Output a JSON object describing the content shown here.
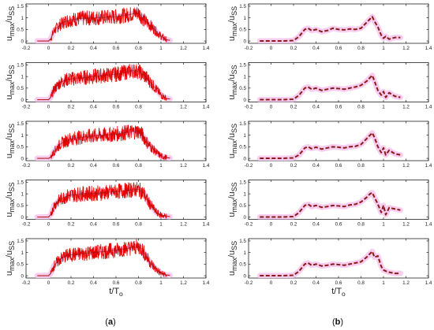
{
  "figure": {
    "caption_left": "(a)",
    "caption_right": "(b)",
    "caption_left_open": "(",
    "caption_left_letter": "a",
    "caption_left_close": ")",
    "caption_right_open": "(",
    "caption_right_letter": "b",
    "caption_right_close": ")",
    "colors": {
      "signal": "#e60000",
      "mean": "#8b1a1a",
      "halo": "#f7c8ee",
      "axes": "#000000"
    }
  },
  "chart_data": [
    {
      "id": "a1",
      "column": "a",
      "type": "line",
      "ylabel_main": "u",
      "ylabel_sub1": "max",
      "ylabel_mid": "/u",
      "ylabel_sub2": "SS",
      "xlabel_main": "",
      "xlabel_sub": "",
      "xlim": [
        -0.2,
        1.4
      ],
      "ylim": [
        -0.1,
        1.6
      ],
      "xticks": [
        "-0.2",
        "0",
        "0.2",
        "0.4",
        "0.6",
        "0.8",
        "1",
        "1.2",
        "1.4"
      ],
      "yticks": [
        "0",
        "0.5",
        "1",
        "1.5"
      ],
      "series": [
        {
          "style": "noisy",
          "x": [
            -0.1,
            0,
            0.02,
            0.05,
            0.1,
            0.15,
            0.2,
            0.3,
            0.4,
            0.5,
            0.6,
            0.7,
            0.8,
            0.82,
            0.85,
            0.9,
            0.95,
            1.0,
            1.05,
            1.08
          ],
          "y": [
            0,
            0,
            0.1,
            0.45,
            0.7,
            0.85,
            0.92,
            0.98,
            1.0,
            1.02,
            1.05,
            1.12,
            1.22,
            1.1,
            0.9,
            0.7,
            0.45,
            0.2,
            0.05,
            0.03
          ]
        }
      ]
    },
    {
      "id": "a2",
      "column": "a",
      "type": "line",
      "ylabel_main": "u",
      "ylabel_sub1": "max",
      "ylabel_mid": "/u",
      "ylabel_sub2": "SS",
      "xlabel_main": "",
      "xlabel_sub": "",
      "xlim": [
        -0.2,
        1.4
      ],
      "ylim": [
        -0.1,
        1.6
      ],
      "xticks": [
        "-0.2",
        "0",
        "0.2",
        "0.4",
        "0.6",
        "0.8",
        "1",
        "1.2",
        "1.4"
      ],
      "yticks": [
        "0",
        "0.5",
        "1",
        "1.5"
      ],
      "series": [
        {
          "style": "noisy",
          "x": [
            -0.1,
            0,
            0.02,
            0.05,
            0.1,
            0.15,
            0.2,
            0.3,
            0.4,
            0.5,
            0.6,
            0.7,
            0.75,
            0.8,
            0.85,
            0.9,
            0.95,
            1.0,
            1.05,
            1.08
          ],
          "y": [
            0,
            0,
            0.1,
            0.45,
            0.72,
            0.85,
            0.9,
            0.95,
            1.0,
            1.05,
            1.1,
            1.2,
            1.25,
            1.22,
            1.05,
            0.8,
            0.5,
            0.2,
            0.05,
            0.03
          ]
        }
      ]
    },
    {
      "id": "a3",
      "column": "a",
      "type": "line",
      "ylabel_main": "u",
      "ylabel_sub1": "max",
      "ylabel_mid": "/u",
      "ylabel_sub2": "SS",
      "xlabel_main": "",
      "xlabel_sub": "",
      "xlim": [
        -0.2,
        1.4
      ],
      "ylim": [
        -0.1,
        1.6
      ],
      "xticks": [
        "-0.2",
        "0",
        "0.2",
        "0.4",
        "0.6",
        "0.8",
        "1",
        "1.2",
        "1.4"
      ],
      "yticks": [
        "0",
        "0.5",
        "1",
        "1.5"
      ],
      "series": [
        {
          "style": "noisy",
          "x": [
            -0.1,
            0,
            0.02,
            0.05,
            0.1,
            0.15,
            0.2,
            0.3,
            0.4,
            0.5,
            0.6,
            0.7,
            0.8,
            0.82,
            0.85,
            0.88,
            0.92,
            0.96,
            1.0,
            1.05,
            1.08
          ],
          "y": [
            0,
            0,
            0.05,
            0.3,
            0.6,
            0.75,
            0.85,
            0.92,
            0.97,
            1.0,
            1.05,
            1.12,
            1.18,
            1.1,
            0.9,
            0.65,
            0.45,
            0.25,
            0.1,
            0.03,
            0.02
          ]
        }
      ]
    },
    {
      "id": "a4",
      "column": "a",
      "type": "line",
      "ylabel_main": "u",
      "ylabel_sub1": "max",
      "ylabel_mid": "/u",
      "ylabel_sub2": "SS",
      "xlabel_main": "",
      "xlabel_sub": "",
      "xlim": [
        -0.2,
        1.4
      ],
      "ylim": [
        -0.1,
        1.6
      ],
      "xticks": [
        "-0.2",
        "0",
        "0.2",
        "0.4",
        "0.6",
        "0.8",
        "1",
        "1.2",
        "1.4"
      ],
      "yticks": [
        "0",
        "0.5",
        "1",
        "1.5"
      ],
      "series": [
        {
          "style": "noisy",
          "x": [
            -0.1,
            0,
            0.02,
            0.05,
            0.1,
            0.15,
            0.2,
            0.3,
            0.4,
            0.5,
            0.6,
            0.7,
            0.8,
            0.85,
            0.88,
            0.92,
            0.96,
            1.0,
            1.05,
            1.08
          ],
          "y": [
            0,
            0,
            0.1,
            0.5,
            0.75,
            0.88,
            0.95,
            1.0,
            1.02,
            1.05,
            1.1,
            1.15,
            1.2,
            1.0,
            0.7,
            0.45,
            0.2,
            0.08,
            0.03,
            0.02
          ]
        }
      ]
    },
    {
      "id": "a5",
      "column": "a",
      "type": "line",
      "ylabel_main": "u",
      "ylabel_sub1": "max",
      "ylabel_mid": "/u",
      "ylabel_sub2": "SS",
      "xlabel_main": "t/T",
      "xlabel_sub": "o",
      "xlim": [
        -0.2,
        1.4
      ],
      "ylim": [
        -0.1,
        1.6
      ],
      "xticks": [
        "-0.2",
        "0",
        "0.2",
        "0.4",
        "0.6",
        "0.8",
        "1",
        "1.2",
        "1.4"
      ],
      "yticks": [
        "0",
        "0.5",
        "1",
        "1.5"
      ],
      "series": [
        {
          "style": "noisy",
          "x": [
            -0.1,
            0,
            0.02,
            0.05,
            0.1,
            0.15,
            0.2,
            0.3,
            0.4,
            0.5,
            0.6,
            0.7,
            0.8,
            0.83,
            0.86,
            0.9,
            0.94,
            1.0,
            1.05,
            1.08
          ],
          "y": [
            0,
            0,
            0.1,
            0.45,
            0.7,
            0.85,
            0.9,
            0.95,
            1.0,
            1.05,
            1.1,
            1.18,
            1.25,
            1.15,
            0.9,
            0.6,
            0.35,
            0.1,
            0.03,
            0.02
          ]
        }
      ]
    },
    {
      "id": "b1",
      "column": "b",
      "type": "line",
      "ylabel_main": "u",
      "ylabel_sub1": "max",
      "ylabel_mid": "/u",
      "ylabel_sub2": "SS",
      "xlabel_main": "",
      "xlabel_sub": "",
      "xlim": [
        -0.2,
        1.4
      ],
      "ylim": [
        -0.1,
        1.6
      ],
      "xticks": [
        "-0.2",
        "0",
        "0.2",
        "0.4",
        "0.6",
        "0.8",
        "1",
        "1.2",
        "1.4"
      ],
      "yticks": [
        "0",
        "0.5",
        "1",
        "1.5"
      ],
      "series": [
        {
          "style": "dashed",
          "x": [
            -0.1,
            0.1,
            0.2,
            0.25,
            0.3,
            0.33,
            0.36,
            0.4,
            0.45,
            0.5,
            0.55,
            0.6,
            0.65,
            0.7,
            0.75,
            0.8,
            0.85,
            0.88,
            0.9,
            0.92,
            0.95,
            0.98,
            1.0,
            1.02,
            1.05,
            1.1,
            1.15
          ],
          "y": [
            0,
            0,
            0.02,
            0.2,
            0.5,
            0.55,
            0.45,
            0.5,
            0.4,
            0.45,
            0.55,
            0.5,
            0.48,
            0.52,
            0.5,
            0.55,
            0.8,
            0.95,
            1.05,
            0.85,
            0.6,
            0.25,
            0.12,
            0.2,
            0.08,
            0.15,
            0.15
          ]
        }
      ]
    },
    {
      "id": "b2",
      "column": "b",
      "type": "line",
      "ylabel_main": "u",
      "ylabel_sub1": "max",
      "ylabel_mid": "/u",
      "ylabel_sub2": "SS",
      "xlabel_main": "",
      "xlabel_sub": "",
      "xlim": [
        -0.2,
        1.4
      ],
      "ylim": [
        -0.1,
        1.6
      ],
      "xticks": [
        "-0.2",
        "0",
        "0.2",
        "0.4",
        "0.6",
        "0.8",
        "1",
        "1.2",
        "1.4"
      ],
      "yticks": [
        "0",
        "0.5",
        "1",
        "1.5"
      ],
      "series": [
        {
          "style": "dashed",
          "x": [
            -0.1,
            0.1,
            0.2,
            0.25,
            0.3,
            0.33,
            0.36,
            0.4,
            0.45,
            0.5,
            0.55,
            0.6,
            0.65,
            0.7,
            0.75,
            0.8,
            0.85,
            0.88,
            0.9,
            0.92,
            0.95,
            0.98,
            1.0,
            1.02,
            1.05,
            1.1,
            1.15
          ],
          "y": [
            0,
            0,
            0.02,
            0.2,
            0.5,
            0.55,
            0.45,
            0.5,
            0.4,
            0.45,
            0.5,
            0.48,
            0.45,
            0.5,
            0.55,
            0.62,
            0.8,
            0.95,
            1.05,
            0.8,
            0.4,
            0.2,
            0.35,
            0.1,
            0.3,
            0.15,
            0.1
          ]
        }
      ]
    },
    {
      "id": "b3",
      "column": "b",
      "type": "line",
      "ylabel_main": "u",
      "ylabel_sub1": "max",
      "ylabel_mid": "/u",
      "ylabel_sub2": "SS",
      "xlabel_main": "",
      "xlabel_sub": "",
      "xlim": [
        -0.2,
        1.4
      ],
      "ylim": [
        -0.1,
        1.6
      ],
      "xticks": [
        "-0.2",
        "0",
        "0.2",
        "0.4",
        "0.6",
        "0.8",
        "1",
        "1.2",
        "1.4"
      ],
      "yticks": [
        "0",
        "0.5",
        "1",
        "1.5"
      ],
      "series": [
        {
          "style": "dashed",
          "x": [
            -0.1,
            0.1,
            0.2,
            0.25,
            0.3,
            0.33,
            0.36,
            0.4,
            0.45,
            0.5,
            0.55,
            0.6,
            0.65,
            0.7,
            0.75,
            0.8,
            0.85,
            0.88,
            0.9,
            0.92,
            0.95,
            0.98,
            1.0,
            1.02,
            1.05,
            1.1,
            1.15
          ],
          "y": [
            0,
            0,
            0.02,
            0.15,
            0.45,
            0.5,
            0.42,
            0.48,
            0.4,
            0.45,
            0.5,
            0.48,
            0.45,
            0.5,
            0.52,
            0.6,
            0.85,
            1.0,
            1.1,
            0.9,
            0.5,
            0.25,
            0.45,
            0.15,
            0.35,
            0.2,
            0.15
          ]
        }
      ]
    },
    {
      "id": "b4",
      "column": "b",
      "type": "line",
      "ylabel_main": "u",
      "ylabel_sub1": "max",
      "ylabel_mid": "/u",
      "ylabel_sub2": "SS",
      "xlabel_main": "",
      "xlabel_sub": "",
      "xlim": [
        -0.2,
        1.4
      ],
      "ylim": [
        -0.1,
        1.6
      ],
      "xticks": [
        "-0.2",
        "0",
        "0.2",
        "0.4",
        "0.6",
        "0.8",
        "1",
        "1.2",
        "1.4"
      ],
      "yticks": [
        "0",
        "0.5",
        "1",
        "1.5"
      ],
      "series": [
        {
          "style": "dashed",
          "x": [
            -0.1,
            0.1,
            0.2,
            0.25,
            0.3,
            0.33,
            0.36,
            0.4,
            0.45,
            0.5,
            0.55,
            0.6,
            0.65,
            0.7,
            0.75,
            0.8,
            0.85,
            0.88,
            0.9,
            0.92,
            0.95,
            0.98,
            1.0,
            1.02,
            1.05,
            1.1,
            1.15
          ],
          "y": [
            0,
            0,
            0.02,
            0.2,
            0.5,
            0.55,
            0.45,
            0.5,
            0.42,
            0.45,
            0.5,
            0.48,
            0.45,
            0.52,
            0.55,
            0.65,
            0.85,
            1.0,
            1.05,
            0.85,
            0.55,
            0.2,
            0.5,
            0.1,
            0.4,
            0.35,
            0.3
          ]
        }
      ]
    },
    {
      "id": "b5",
      "column": "b",
      "type": "line",
      "ylabel_main": "u",
      "ylabel_sub1": "max",
      "ylabel_mid": "/u",
      "ylabel_sub2": "SS",
      "xlabel_main": "t/T",
      "xlabel_sub": "o",
      "xlim": [
        -0.2,
        1.4
      ],
      "ylim": [
        -0.1,
        1.6
      ],
      "xticks": [
        "-0.2",
        "0",
        "0.2",
        "0.4",
        "0.6",
        "0.8",
        "1",
        "1.2",
        "1.4"
      ],
      "yticks": [
        "0",
        "0.5",
        "1",
        "1.5"
      ],
      "series": [
        {
          "style": "dashed",
          "x": [
            -0.1,
            0.1,
            0.2,
            0.25,
            0.3,
            0.33,
            0.36,
            0.4,
            0.45,
            0.5,
            0.55,
            0.6,
            0.65,
            0.7,
            0.75,
            0.8,
            0.85,
            0.88,
            0.9,
            0.92,
            0.95,
            0.98,
            1.0,
            1.02,
            1.05,
            1.1,
            1.15
          ],
          "y": [
            0,
            0,
            0.02,
            0.2,
            0.5,
            0.55,
            0.45,
            0.5,
            0.42,
            0.45,
            0.5,
            0.48,
            0.45,
            0.5,
            0.55,
            0.6,
            0.8,
            0.95,
            1.05,
            0.8,
            0.85,
            0.4,
            0.25,
            0.2,
            0.15,
            0.1,
            0.1
          ]
        }
      ]
    }
  ]
}
